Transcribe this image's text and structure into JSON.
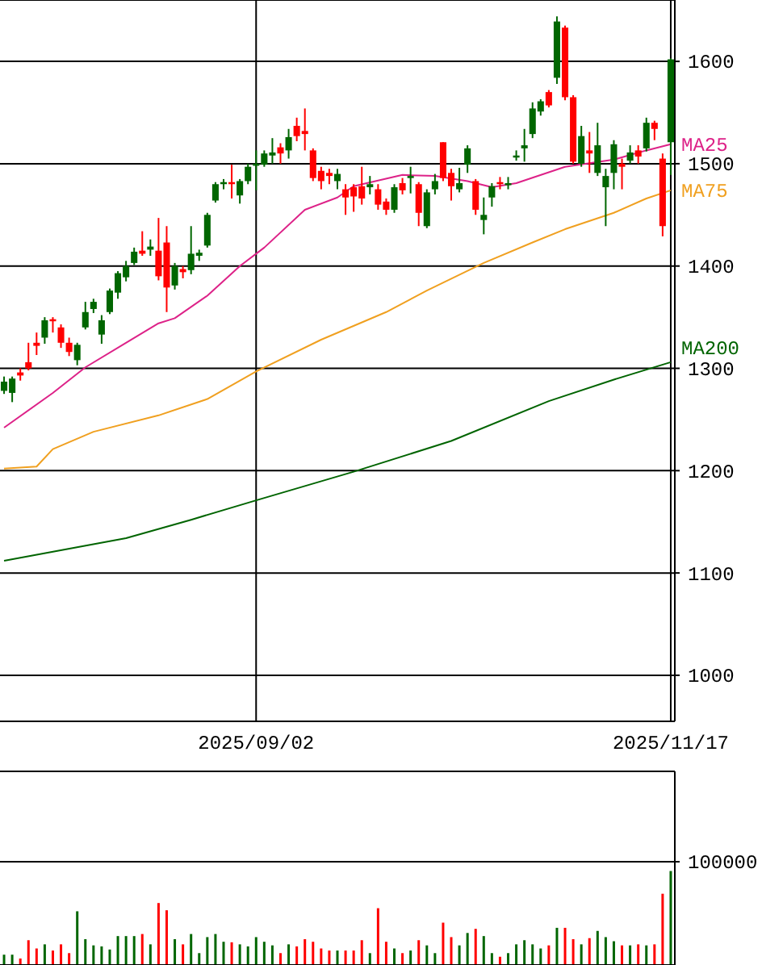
{
  "chart_data": [
    {
      "type": "candlestick",
      "categories": [
        null,
        null,
        null,
        null,
        null,
        null,
        null,
        null,
        null,
        null,
        null,
        null,
        null,
        null,
        null,
        null,
        null,
        null,
        null,
        null,
        null,
        null,
        null,
        null,
        null,
        null,
        null,
        null,
        null,
        null,
        null,
        "2025/09/02",
        null,
        null,
        null,
        null,
        null,
        null,
        null,
        null,
        null,
        null,
        null,
        null,
        null,
        null,
        null,
        null,
        null,
        null,
        null,
        null,
        null,
        null,
        null,
        null,
        null,
        null,
        null,
        null,
        null,
        null,
        null,
        null,
        null,
        null,
        null,
        null,
        null,
        null,
        null,
        null,
        null,
        null,
        null,
        null,
        null,
        null,
        null,
        null,
        null,
        null,
        "2025/11/17"
      ],
      "ohlc": [
        [
          1278,
          1292,
          1275,
          1287
        ],
        [
          1276,
          1292,
          1267,
          1290
        ],
        [
          1296,
          1300,
          1288,
          1293
        ],
        [
          1306,
          1325,
          1298,
          1300
        ],
        [
          1325,
          1335,
          1313,
          1322
        ],
        [
          1330,
          1350,
          1324,
          1347
        ],
        [
          1348,
          1350,
          1335,
          1346
        ],
        [
          1340,
          1343,
          1320,
          1325
        ],
        [
          1325,
          1330,
          1312,
          1316
        ],
        [
          1308,
          1325,
          1303,
          1323
        ],
        [
          1340,
          1365,
          1338,
          1355
        ],
        [
          1358,
          1368,
          1354,
          1365
        ],
        [
          1333,
          1352,
          1324,
          1347
        ],
        [
          1355,
          1378,
          1353,
          1376
        ],
        [
          1374,
          1395,
          1368,
          1393
        ],
        [
          1389,
          1405,
          1385,
          1400
        ],
        [
          1403,
          1418,
          1401,
          1414
        ],
        [
          1415,
          1434,
          1410,
          1412
        ],
        [
          1416,
          1426,
          1410,
          1419
        ],
        [
          1415,
          1447,
          1386,
          1390
        ],
        [
          1423,
          1439,
          1355,
          1379
        ],
        [
          1381,
          1403,
          1377,
          1400
        ],
        [
          1397,
          1400,
          1388,
          1394
        ],
        [
          1396,
          1439,
          1392,
          1412
        ],
        [
          1410,
          1416,
          1405,
          1413
        ],
        [
          1420,
          1452,
          1418,
          1450
        ],
        [
          1464,
          1482,
          1462,
          1480
        ],
        [
          1480,
          1485,
          1475,
          1482
        ],
        [
          1482,
          1499,
          1466,
          1480
        ],
        [
          1469,
          1485,
          1461,
          1483
        ],
        [
          1483,
          1500,
          1480,
          1497
        ],
        [
          1498,
          1513,
          1474,
          1500
        ],
        [
          1499,
          1513,
          1497,
          1510
        ],
        [
          1508,
          1525,
          1500,
          1511
        ],
        [
          1516,
          1520,
          1500,
          1510
        ],
        [
          1513,
          1534,
          1505,
          1526
        ],
        [
          1537,
          1545,
          1522,
          1527
        ],
        [
          1532,
          1554,
          1513,
          1529
        ],
        [
          1513,
          1515,
          1483,
          1486
        ],
        [
          1493,
          1497,
          1475,
          1483
        ],
        [
          1491,
          1495,
          1480,
          1488
        ],
        [
          1483,
          1495,
          1475,
          1490
        ],
        [
          1475,
          1480,
          1450,
          1467
        ],
        [
          1477,
          1480,
          1453,
          1468
        ],
        [
          1478,
          1497,
          1460,
          1466
        ],
        [
          1477,
          1488,
          1470,
          1480
        ],
        [
          1475,
          1480,
          1455,
          1460
        ],
        [
          1463,
          1466,
          1450,
          1455
        ],
        [
          1455,
          1480,
          1452,
          1477
        ],
        [
          1481,
          1486,
          1470,
          1474
        ],
        [
          1486,
          1497,
          1471,
          1488
        ],
        [
          1480,
          1482,
          1439,
          1452
        ],
        [
          1439,
          1475,
          1437,
          1472
        ],
        [
          1475,
          1490,
          1470,
          1483
        ],
        [
          1521,
          1521,
          1483,
          1486
        ],
        [
          1491,
          1495,
          1464,
          1478
        ],
        [
          1475,
          1496,
          1472,
          1481
        ],
        [
          1499,
          1518,
          1491,
          1515
        ],
        [
          1483,
          1485,
          1450,
          1455
        ],
        [
          1445,
          1467,
          1431,
          1450
        ],
        [
          1467,
          1481,
          1458,
          1478
        ],
        [
          1482,
          1487,
          1475,
          1480
        ],
        [
          1479,
          1487,
          1475,
          1481
        ],
        [
          1506,
          1513,
          1503,
          1508
        ],
        [
          1515,
          1534,
          1502,
          1518
        ],
        [
          1529,
          1560,
          1525,
          1554
        ],
        [
          1551,
          1563,
          1547,
          1561
        ],
        [
          1570,
          1572,
          1555,
          1557
        ],
        [
          1584,
          1644,
          1578,
          1639
        ],
        [
          1633,
          1635,
          1562,
          1565
        ],
        [
          1565,
          1567,
          1500,
          1502
        ],
        [
          1500,
          1537,
          1497,
          1527
        ],
        [
          1513,
          1531,
          1491,
          1510
        ],
        [
          1491,
          1540,
          1488,
          1518
        ],
        [
          1477,
          1495,
          1439,
          1488
        ],
        [
          1491,
          1523,
          1475,
          1519
        ],
        [
          1500,
          1505,
          1475,
          1497
        ],
        [
          1503,
          1518,
          1500,
          1511
        ],
        [
          1513,
          1518,
          1500,
          1507
        ],
        [
          1515,
          1545,
          1512,
          1540
        ],
        [
          1540,
          1542,
          1523,
          1534
        ],
        [
          1505,
          1510,
          1429,
          1439
        ],
        [
          1521,
          1603,
          1489,
          1602
        ]
      ],
      "colors": [
        "#006600",
        "#006600",
        "#ff0000",
        "#ff0000",
        "#ff0000",
        "#006600",
        "#ff0000",
        "#ff0000",
        "#ff0000",
        "#006600",
        "#006600",
        "#006600",
        "#006600",
        "#006600",
        "#006600",
        "#006600",
        "#006600",
        "#ff0000",
        "#006600",
        "#ff0000",
        "#ff0000",
        "#006600",
        "#ff0000",
        "#006600",
        "#006600",
        "#006600",
        "#006600",
        "#006600",
        "#ff0000",
        "#006600",
        "#006600",
        "#006600",
        "#006600",
        "#006600",
        "#ff0000",
        "#006600",
        "#ff0000",
        "#ff0000",
        "#ff0000",
        "#ff0000",
        "#ff0000",
        "#006600",
        "#ff0000",
        "#ff0000",
        "#ff0000",
        "#006600",
        "#ff0000",
        "#ff0000",
        "#006600",
        "#ff0000",
        "#006600",
        "#ff0000",
        "#006600",
        "#006600",
        "#ff0000",
        "#ff0000",
        "#006600",
        "#006600",
        "#ff0000",
        "#006600",
        "#006600",
        "#ff0000",
        "#006600",
        "#006600",
        "#006600",
        "#006600",
        "#006600",
        "#ff0000",
        "#006600",
        "#ff0000",
        "#ff0000",
        "#006600",
        "#ff0000",
        "#006600",
        "#006600",
        "#006600",
        "#ff0000",
        "#006600",
        "#ff0000",
        "#006600",
        "#ff0000",
        "#ff0000",
        "#006600"
      ],
      "series": [
        {
          "type": "line",
          "name": "MA25",
          "color": "#dd2288",
          "values": [
            1242,
            null,
            null,
            null,
            null,
            null,
            1276,
            null,
            null,
            null,
            1301,
            null,
            null,
            null,
            null,
            1325,
            null,
            null,
            null,
            1344,
            null,
            1349,
            null,
            null,
            null,
            1371,
            null,
            null,
            null,
            1400,
            null,
            null,
            1418,
            null,
            null,
            null,
            null,
            1455,
            null,
            null,
            null,
            1467,
            null,
            1478,
            null,
            null,
            null,
            null,
            null,
            1489,
            null,
            null,
            null,
            1488,
            null,
            null,
            null,
            1483,
            null,
            null,
            1477,
            null,
            null,
            1481,
            null,
            null,
            null,
            null,
            null,
            1497,
            null,
            null,
            null,
            null,
            null,
            1504,
            null,
            null,
            null,
            1513,
            null,
            null,
            1519
          ]
        },
        {
          "type": "line",
          "name": "MA75",
          "color": "#f0a020",
          "values": [
            1202,
            null,
            null,
            null,
            1204,
            null,
            1221,
            null,
            null,
            null,
            null,
            1238,
            null,
            null,
            null,
            null,
            null,
            null,
            null,
            1254,
            null,
            null,
            null,
            null,
            null,
            1270,
            null,
            null,
            null,
            null,
            null,
            1297,
            null,
            null,
            null,
            null,
            null,
            null,
            null,
            1328,
            null,
            null,
            null,
            null,
            null,
            null,
            null,
            1355,
            null,
            null,
            null,
            null,
            1376,
            null,
            null,
            null,
            null,
            null,
            null,
            1403,
            null,
            null,
            null,
            null,
            null,
            1423,
            null,
            null,
            null,
            1436,
            null,
            null,
            null,
            null,
            null,
            1452,
            null,
            null,
            null,
            1466,
            null,
            null,
            1474
          ]
        },
        {
          "type": "line",
          "name": "MA200",
          "color": "#006400",
          "values": [
            1112,
            null,
            null,
            null,
            null,
            null,
            null,
            null,
            null,
            null,
            null,
            null,
            null,
            null,
            null,
            1134,
            null,
            null,
            null,
            null,
            null,
            null,
            null,
            1152,
            null,
            null,
            null,
            null,
            null,
            null,
            null,
            1171,
            null,
            null,
            null,
            null,
            null,
            null,
            null,
            null,
            null,
            null,
            null,
            1199,
            null,
            null,
            null,
            null,
            null,
            null,
            null,
            null,
            null,
            null,
            null,
            1229,
            null,
            null,
            null,
            null,
            null,
            null,
            null,
            null,
            null,
            null,
            null,
            1268,
            null,
            null,
            null,
            null,
            null,
            null,
            null,
            1289,
            null,
            null,
            null,
            null,
            null,
            null,
            1306
          ]
        }
      ],
      "ylim": [
        955,
        1660
      ],
      "yticks": [
        1000,
        1100,
        1200,
        1300,
        1400,
        1500,
        1600
      ],
      "grid": true
    },
    {
      "type": "bar",
      "categories": [
        null,
        null,
        null,
        null,
        null,
        null,
        null,
        null,
        null,
        null,
        null,
        null,
        null,
        null,
        null,
        null,
        null,
        null,
        null,
        null,
        null,
        null,
        null,
        null,
        null,
        null,
        null,
        null,
        null,
        null,
        null,
        null,
        null,
        null,
        null,
        null,
        null,
        null,
        null,
        null,
        null,
        null,
        null,
        null,
        null,
        null,
        null,
        null,
        null,
        null,
        null,
        null,
        null,
        null,
        null,
        null,
        null,
        null,
        null,
        null,
        null,
        null,
        null,
        null,
        null,
        null,
        null,
        null,
        null,
        null,
        null,
        null,
        null,
        null,
        null,
        null,
        null,
        null,
        null,
        null,
        null,
        null,
        null
      ],
      "values": [
        10000,
        10000,
        6300,
        24000,
        16000,
        20000,
        14000,
        20000,
        11500,
        52000,
        25000,
        19000,
        18000,
        15000,
        28000,
        28000,
        28000,
        30000,
        20000,
        60000,
        53000,
        25000,
        20000,
        30000,
        11500,
        27000,
        30000,
        22500,
        22000,
        20000,
        18000,
        27000,
        22500,
        19000,
        11500,
        20000,
        18000,
        25000,
        22500,
        16000,
        14000,
        14000,
        14000,
        14000,
        24000,
        11500,
        55000,
        22500,
        16000,
        11500,
        14000,
        24000,
        19000,
        11500,
        41000,
        27000,
        19000,
        31000,
        35000,
        28000,
        11500,
        8000,
        11500,
        20000,
        24000,
        20000,
        16000,
        19000,
        36000,
        36000,
        25000,
        20000,
        26000,
        33000,
        27000,
        23000,
        19000,
        19000,
        20000,
        19000,
        20000,
        69000,
        91000
      ],
      "colors": [
        "#006600",
        "#006600",
        "#ff0000",
        "#ff0000",
        "#ff0000",
        "#006600",
        "#ff0000",
        "#ff0000",
        "#ff0000",
        "#006600",
        "#006600",
        "#006600",
        "#006600",
        "#006600",
        "#006600",
        "#006600",
        "#006600",
        "#ff0000",
        "#006600",
        "#ff0000",
        "#ff0000",
        "#006600",
        "#ff0000",
        "#006600",
        "#006600",
        "#006600",
        "#006600",
        "#006600",
        "#ff0000",
        "#006600",
        "#006600",
        "#006600",
        "#006600",
        "#006600",
        "#ff0000",
        "#006600",
        "#ff0000",
        "#ff0000",
        "#ff0000",
        "#ff0000",
        "#ff0000",
        "#006600",
        "#ff0000",
        "#ff0000",
        "#ff0000",
        "#006600",
        "#ff0000",
        "#ff0000",
        "#006600",
        "#ff0000",
        "#006600",
        "#ff0000",
        "#006600",
        "#006600",
        "#ff0000",
        "#ff0000",
        "#006600",
        "#006600",
        "#ff0000",
        "#006600",
        "#006600",
        "#ff0000",
        "#006600",
        "#006600",
        "#006600",
        "#006600",
        "#006600",
        "#ff0000",
        "#006600",
        "#ff0000",
        "#ff0000",
        "#006600",
        "#ff0000",
        "#006600",
        "#006600",
        "#006600",
        "#ff0000",
        "#006600",
        "#ff0000",
        "#006600",
        "#ff0000",
        "#ff0000",
        "#006600"
      ],
      "ylim": [
        0,
        187500
      ],
      "yticks": [
        {
          "value": 0,
          "label": null
        },
        100000
      ],
      "grid": "y",
      "tick_labels": "y"
    }
  ]
}
